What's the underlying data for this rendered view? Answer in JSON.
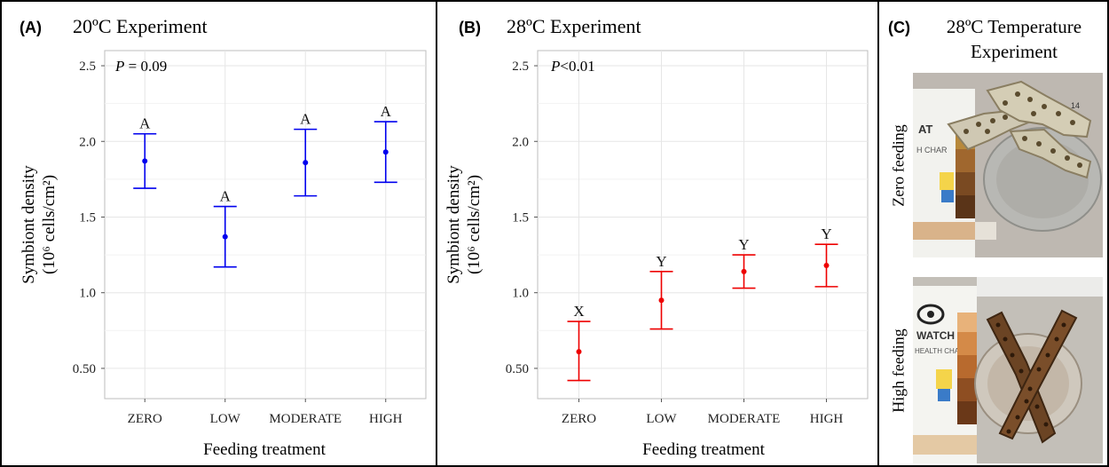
{
  "panels": [
    {
      "letter": "(A)",
      "title": "20ºC Experiment",
      "pvalue_prefix": "P",
      "pvalue_rest": " = 0.09"
    },
    {
      "letter": "(B)",
      "title": "28ºC Experiment",
      "pvalue_prefix": "P",
      "pvalue_rest": "<0.01"
    }
  ],
  "photo_panel": {
    "letter": "(C)",
    "title_line1": "28ºC Temperature",
    "title_line2": "Experiment",
    "photo1_label": "Zero feeding",
    "photo2_label": "High feeding",
    "photo1_chart_text": [
      "AT",
      "H CHAR",
      "14"
    ],
    "photo2_chart_text": [
      "WATCH",
      "HEALTH CHART"
    ]
  },
  "chart_data": [
    {
      "type": "scatter",
      "title": "20ºC Experiment",
      "xlabel": "Feeding treatment",
      "ylabel_line1": "Symbiont density",
      "ylabel_line2": "(10⁶ cells/cm²)",
      "categories": [
        "ZERO",
        "LOW",
        "MODERATE",
        "HIGH"
      ],
      "series": [
        {
          "mean": [
            1.87,
            1.37,
            1.86,
            1.93
          ],
          "lower": [
            1.69,
            1.17,
            1.64,
            1.73
          ],
          "upper": [
            2.05,
            1.57,
            2.08,
            2.13
          ],
          "group_labels": [
            "A",
            "A",
            "A",
            "A"
          ],
          "color": "#0000ee"
        }
      ],
      "yticks": [
        "0.50",
        "1.0",
        "1.5",
        "2.0",
        "2.5"
      ],
      "ytick_values": [
        0.5,
        1.0,
        1.5,
        2.0,
        2.5
      ],
      "ylim": [
        0.3,
        2.6
      ],
      "grid": true
    },
    {
      "type": "scatter",
      "title": "28ºC Experiment",
      "xlabel": "Feeding treatment",
      "ylabel_line1": "Symbiont density",
      "ylabel_line2": "(10⁶ cells/cm²)",
      "categories": [
        "ZERO",
        "LOW",
        "MODERATE",
        "HIGH"
      ],
      "series": [
        {
          "mean": [
            0.61,
            0.95,
            1.14,
            1.18
          ],
          "lower": [
            0.42,
            0.76,
            1.03,
            1.04
          ],
          "upper": [
            0.81,
            1.14,
            1.25,
            1.32
          ],
          "group_labels": [
            "X",
            "Y",
            "Y",
            "Y"
          ],
          "color": "#ee0000"
        }
      ],
      "yticks": [
        "0.50",
        "1.0",
        "1.5",
        "2.0",
        "2.5"
      ],
      "ytick_values": [
        0.5,
        1.0,
        1.5,
        2.0,
        2.5
      ],
      "ylim": [
        0.3,
        2.6
      ],
      "grid": true
    }
  ]
}
